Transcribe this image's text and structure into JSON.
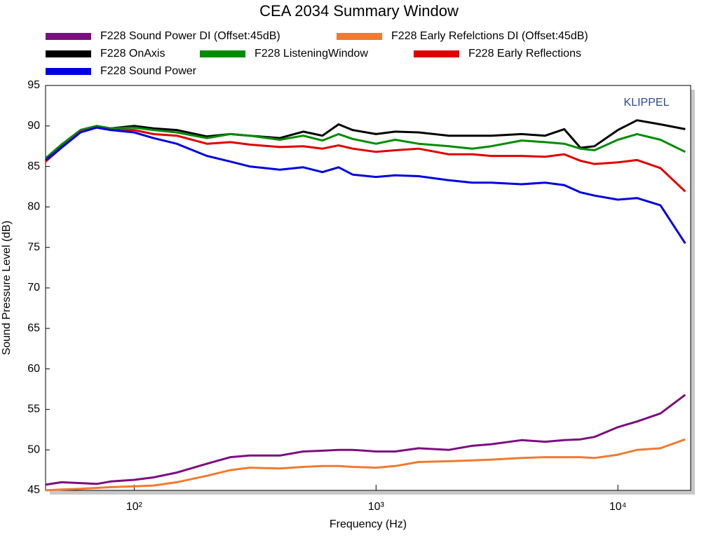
{
  "chart_data": {
    "type": "line",
    "title": "CEA 2034 Summary Window",
    "xlabel": "Frequency (Hz)",
    "ylabel": "Sound Pressure Level (dB)",
    "annotation": "KLIPPEL",
    "xscale": "log",
    "xlim": [
      43,
      20000
    ],
    "ylim": [
      45,
      95
    ],
    "xticks": [
      {
        "value": 100,
        "label": "10²"
      },
      {
        "value": 1000,
        "label": "10³"
      },
      {
        "value": 10000,
        "label": "10⁴"
      }
    ],
    "yticks": [
      45,
      50,
      55,
      60,
      65,
      70,
      75,
      80,
      85,
      90,
      95
    ],
    "grid": false,
    "x": [
      43,
      50,
      60,
      70,
      80,
      100,
      120,
      150,
      200,
      250,
      300,
      400,
      500,
      600,
      700,
      800,
      1000,
      1200,
      1500,
      2000,
      2500,
      3000,
      4000,
      5000,
      6000,
      7000,
      8000,
      10000,
      12000,
      15000,
      19000
    ],
    "series": [
      {
        "name": "F228 Sound Power DI (Offset:45dB)",
        "color": "#7b0f7f",
        "values": [
          45.7,
          46.0,
          45.9,
          45.8,
          46.1,
          46.3,
          46.6,
          47.2,
          48.3,
          49.1,
          49.3,
          49.3,
          49.8,
          49.9,
          50,
          50,
          49.8,
          49.8,
          50.2,
          50,
          50.5,
          50.7,
          51.2,
          51,
          51.2,
          51.3,
          51.6,
          52.8,
          53.5,
          54.5,
          56.8
        ]
      },
      {
        "name": "F228 Early Refelctions DI (Offset:45dB)",
        "color": "#f07a30",
        "values": [
          45,
          45.1,
          45.2,
          45.3,
          45.4,
          45.5,
          45.6,
          46,
          46.8,
          47.5,
          47.8,
          47.7,
          47.9,
          48,
          48,
          47.9,
          47.8,
          48,
          48.5,
          48.6,
          48.7,
          48.8,
          49,
          49.1,
          49.1,
          49.1,
          49,
          49.4,
          50,
          50.2,
          51.3
        ]
      },
      {
        "name": "F228 OnAxis",
        "color": "#000000",
        "values": [
          86,
          87.5,
          89.5,
          90,
          89.7,
          90,
          89.7,
          89.5,
          88.7,
          89,
          88.8,
          88.5,
          89.3,
          88.8,
          90.2,
          89.5,
          89,
          89.3,
          89.2,
          88.8,
          88.8,
          88.8,
          89,
          88.8,
          89.6,
          87.3,
          87.5,
          89.5,
          90.7,
          90.2,
          89.6
        ]
      },
      {
        "name": "F228 ListeningWindow",
        "color": "#008c00",
        "values": [
          86,
          87.7,
          89.5,
          90,
          89.7,
          89.8,
          89.5,
          89.2,
          88.5,
          89,
          88.8,
          88.3,
          88.8,
          88.2,
          89,
          88.4,
          87.8,
          88.3,
          87.8,
          87.5,
          87.2,
          87.5,
          88.2,
          88,
          87.8,
          87.2,
          87,
          88.3,
          89,
          88.3,
          86.8
        ]
      },
      {
        "name": "F228 Early Reflections",
        "color": "#e00000",
        "values": [
          85.6,
          87.3,
          89.3,
          89.8,
          89.5,
          89.5,
          89,
          88.8,
          87.8,
          88,
          87.7,
          87.4,
          87.5,
          87.2,
          87.6,
          87.2,
          86.8,
          87,
          87.2,
          86.5,
          86.5,
          86.3,
          86.3,
          86.2,
          86.5,
          85.7,
          85.3,
          85.5,
          85.8,
          84.8,
          81.9
        ]
      },
      {
        "name": "F228 Sound Power",
        "color": "#0000e0",
        "values": [
          85.8,
          87.3,
          89.2,
          89.8,
          89.5,
          89.2,
          88.5,
          87.8,
          86.3,
          85.6,
          85,
          84.6,
          84.9,
          84.3,
          84.9,
          84,
          83.7,
          83.9,
          83.8,
          83.3,
          83,
          83,
          82.8,
          83,
          82.7,
          81.8,
          81.4,
          80.9,
          81.1,
          80.2,
          75.5
        ]
      }
    ]
  }
}
